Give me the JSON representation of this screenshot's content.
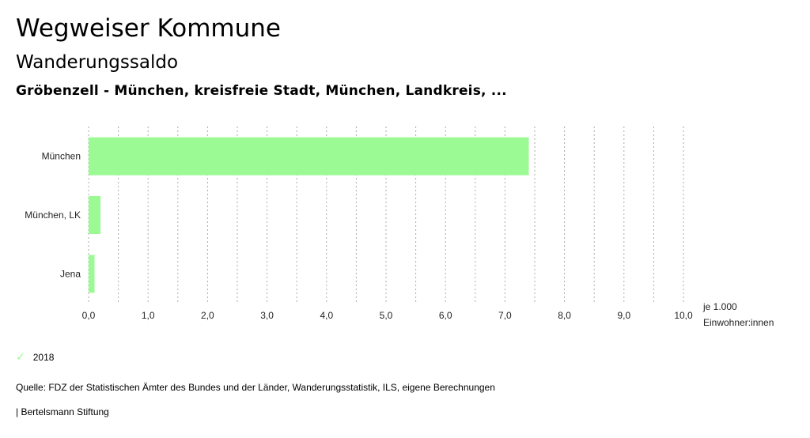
{
  "header": {
    "title": "Wegweiser Kommune",
    "subtitle": "Wanderungssaldo",
    "selection": "Gröbenzell - München, kreisfreie Stadt, München, Landkreis, ..."
  },
  "chart_data": {
    "type": "bar",
    "orientation": "horizontal",
    "categories": [
      "München",
      "München, LK",
      "Jena"
    ],
    "series": [
      {
        "name": "2018",
        "values": [
          7.4,
          0.2,
          0.1
        ],
        "color": "#9cfa94"
      }
    ],
    "xlim": [
      0,
      10
    ],
    "xticks": [
      "0,0",
      "1,0",
      "2,0",
      "3,0",
      "4,0",
      "5,0",
      "6,0",
      "7,0",
      "8,0",
      "9,0",
      "10,0"
    ],
    "xlabel_line1": "je 1.000",
    "xlabel_line2": "Einwohner:innen",
    "grid": true
  },
  "legend": {
    "label": "2018",
    "icon": "check-icon"
  },
  "footer": {
    "source": "Quelle: FDZ der Statistischen Ämter des Bundes und der Länder, Wanderungsstatistik, ILS, eigene Berechnungen",
    "brand": "| Bertelsmann Stiftung"
  }
}
